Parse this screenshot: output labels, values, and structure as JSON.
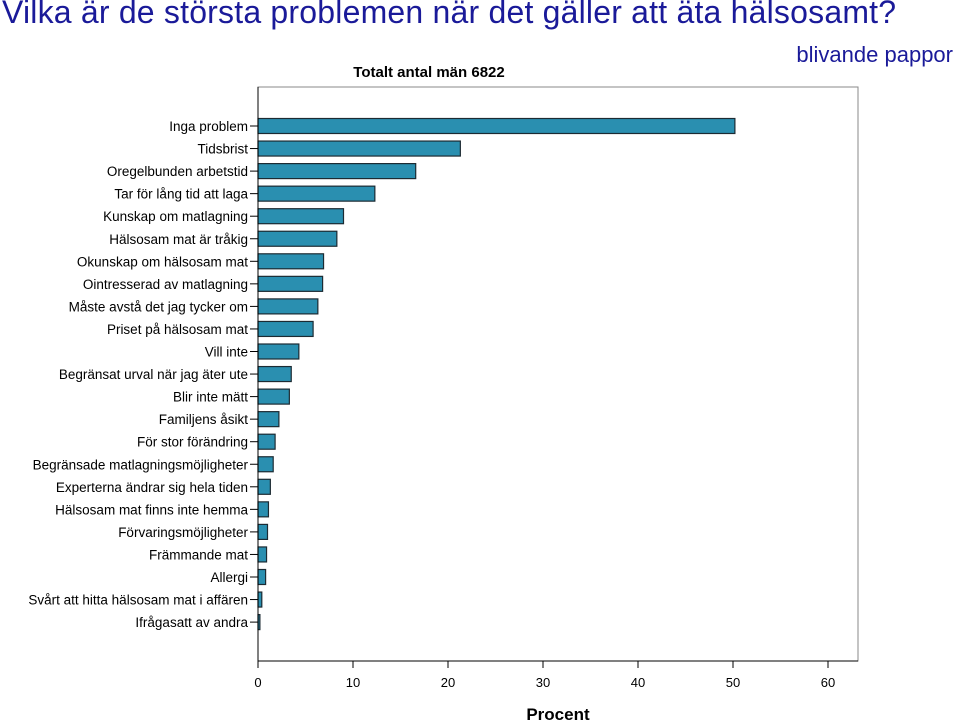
{
  "slide": {
    "heading": "Vilka är de största problemen när det gäller att äta hälsosamt?",
    "subheading": "blivande pappor"
  },
  "chart_data": {
    "type": "bar",
    "orientation": "horizontal",
    "title": "Totalt antal män 6822",
    "xlabel": "Procent",
    "ylabel": "",
    "xlim": [
      0,
      63
    ],
    "xticks": [
      0,
      10,
      20,
      30,
      40,
      50,
      60
    ],
    "grid": false,
    "colors": {
      "bar": "#2a8fb0",
      "bar_edge": "#1c2b33",
      "heading": "#1a1a99"
    },
    "categories": [
      "Inga problem",
      "Tidsbrist",
      "Oregelbunden arbetstid",
      "Tar för lång tid att laga",
      "Kunskap om matlagning",
      "Hälsosam mat är tråkig",
      "Okunskap om hälsosam mat",
      "Ointresserad av matlagning",
      "Måste avstå det jag tycker om",
      "Priset på hälsosam mat",
      "Vill inte",
      "Begränsat urval när jag äter ute",
      "Blir inte mätt",
      "Familjens åsikt",
      "För stor förändring",
      "Begränsade matlagningsmöjligheter",
      "Experterna ändrar sig hela tiden",
      "Hälsosam mat finns inte hemma",
      "Förvaringsmöjligheter",
      "Främmande mat",
      "Allergi",
      "Svårt att hitta hälsosam mat i affären",
      "Ifrågasatt av andra"
    ],
    "values": [
      50.2,
      21.3,
      16.6,
      12.3,
      9.0,
      8.3,
      6.9,
      6.8,
      6.3,
      5.8,
      4.3,
      3.5,
      3.3,
      2.2,
      1.8,
      1.6,
      1.3,
      1.1,
      1.0,
      0.9,
      0.8,
      0.4,
      0.2
    ]
  }
}
